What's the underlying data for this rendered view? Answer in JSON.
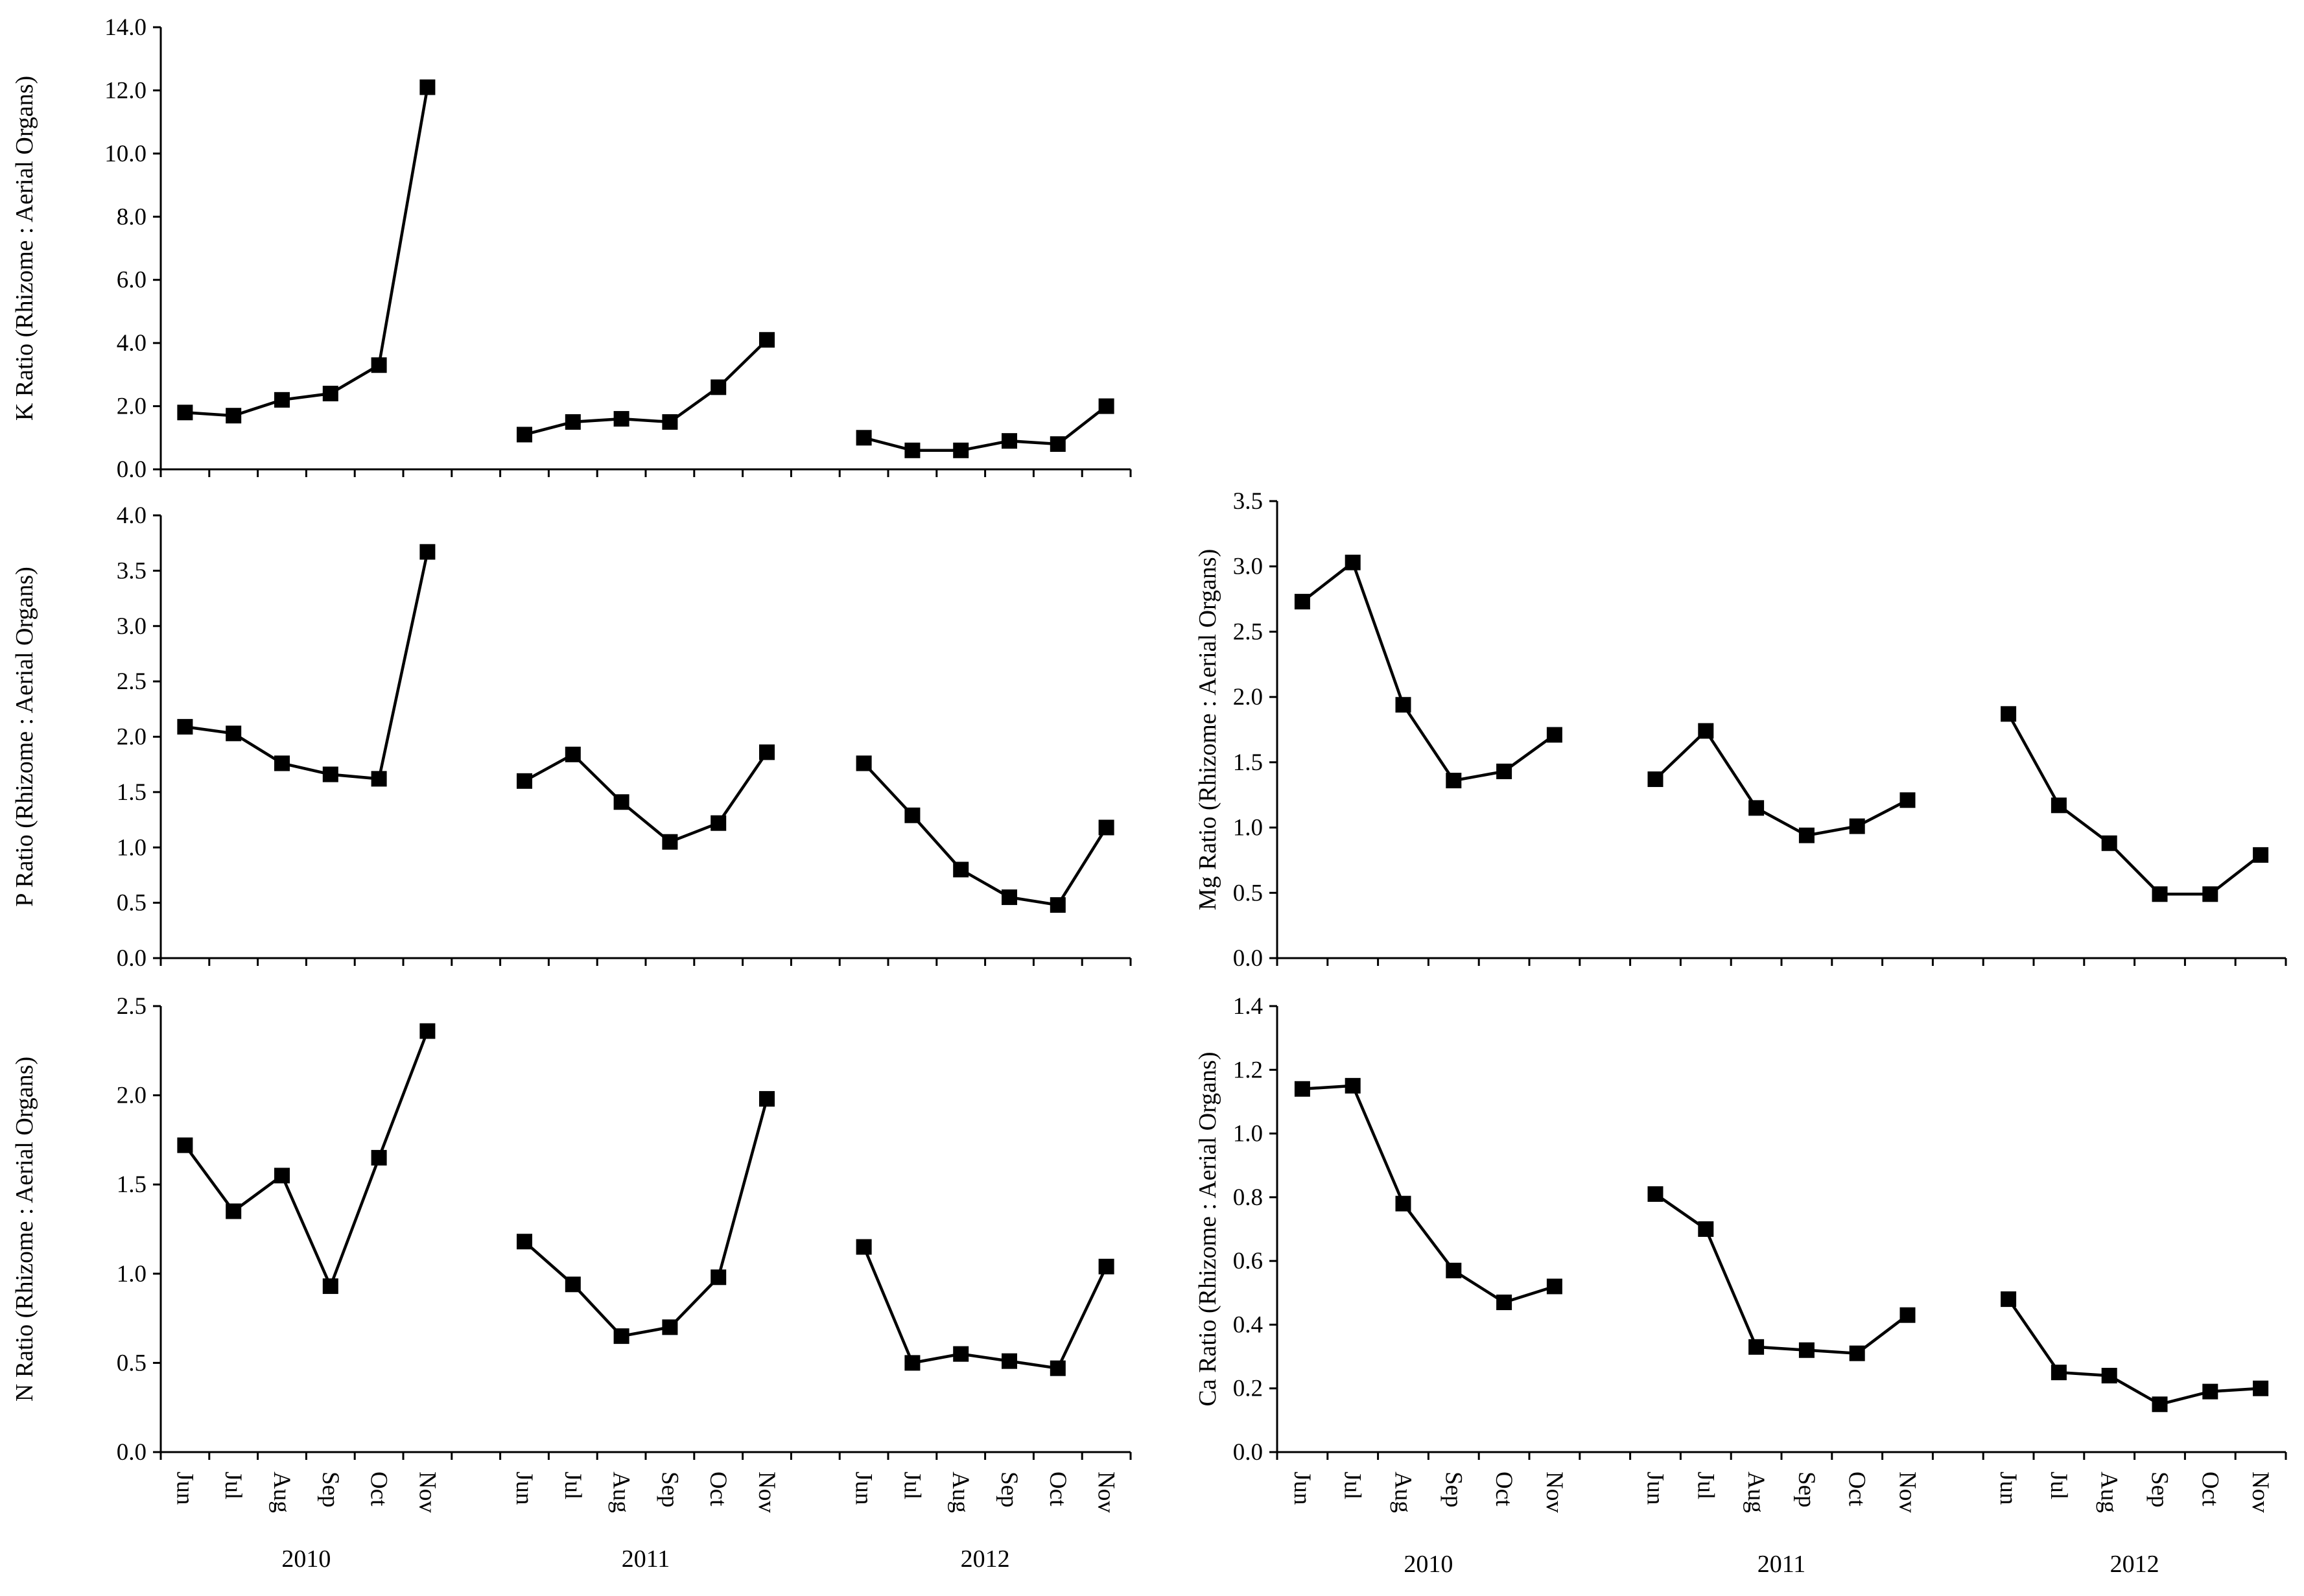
{
  "chart_data": [
    {
      "id": "k",
      "type": "line",
      "title": "",
      "ylabel": "K Ratio (Rhizome : Aerial Organs)",
      "ylim": [
        0,
        14
      ],
      "yticks": [
        "0.0",
        "2.0",
        "4.0",
        "6.0",
        "8.0",
        "10.0",
        "12.0",
        "14.0"
      ],
      "month_labels_shown": false,
      "years": [
        {
          "year": "2010",
          "months": [
            "Jun",
            "Jul",
            "Aug",
            "Sep",
            "Oct",
            "Nov"
          ],
          "values": [
            1.8,
            1.7,
            2.2,
            2.4,
            3.3,
            12.1
          ]
        },
        {
          "year": "2011",
          "months": [
            "Jun",
            "Jul",
            "Aug",
            "Sep",
            "Oct",
            "Nov"
          ],
          "values": [
            1.1,
            1.5,
            1.6,
            1.5,
            2.6,
            4.1
          ]
        },
        {
          "year": "2012",
          "months": [
            "Jun",
            "Jul",
            "Aug",
            "Sep",
            "Oct",
            "Nov"
          ],
          "values": [
            1.0,
            0.6,
            0.6,
            0.9,
            0.8,
            2.0
          ]
        }
      ]
    },
    {
      "id": "p",
      "type": "line",
      "title": "",
      "ylabel": "P Ratio (Rhizome : Aerial Organs)",
      "ylim": [
        0,
        4
      ],
      "yticks": [
        "0.0",
        "0.5",
        "1.0",
        "1.5",
        "2.0",
        "2.5",
        "3.0",
        "3.5",
        "4.0"
      ],
      "month_labels_shown": false,
      "years": [
        {
          "year": "2010",
          "months": [
            "Jun",
            "Jul",
            "Aug",
            "Sep",
            "Oct",
            "Nov"
          ],
          "values": [
            2.09,
            2.03,
            1.76,
            1.66,
            1.62,
            3.67
          ]
        },
        {
          "year": "2011",
          "months": [
            "Jun",
            "Jul",
            "Aug",
            "Sep",
            "Oct",
            "Nov"
          ],
          "values": [
            1.6,
            1.84,
            1.41,
            1.05,
            1.22,
            1.86
          ]
        },
        {
          "year": "2012",
          "months": [
            "Jun",
            "Jul",
            "Aug",
            "Sep",
            "Oct",
            "Nov"
          ],
          "values": [
            1.76,
            1.29,
            0.8,
            0.55,
            0.48,
            1.18
          ]
        }
      ]
    },
    {
      "id": "mg",
      "type": "line",
      "title": "",
      "ylabel": "Mg Ratio (Rhizome : Aerial Organs)",
      "ylim": [
        0,
        3.5
      ],
      "yticks": [
        "0.0",
        "0.5",
        "1.0",
        "1.5",
        "2.0",
        "2.5",
        "3.0",
        "3.5"
      ],
      "month_labels_shown": false,
      "years": [
        {
          "year": "2010",
          "months": [
            "Jun",
            "Jul",
            "Aug",
            "Sep",
            "Oct",
            "Nov"
          ],
          "values": [
            2.73,
            3.03,
            1.94,
            1.36,
            1.43,
            1.71
          ]
        },
        {
          "year": "2011",
          "months": [
            "Jun",
            "Jul",
            "Aug",
            "Sep",
            "Oct",
            "Nov"
          ],
          "values": [
            1.37,
            1.74,
            1.15,
            0.94,
            1.01,
            1.21
          ]
        },
        {
          "year": "2012",
          "months": [
            "Jun",
            "Jul",
            "Aug",
            "Sep",
            "Oct",
            "Nov"
          ],
          "values": [
            1.87,
            1.17,
            0.88,
            0.49,
            0.49,
            0.79
          ]
        }
      ]
    },
    {
      "id": "n",
      "type": "line",
      "title": "",
      "ylabel": "N Ratio (Rhizome : Aerial Organs)",
      "ylim": [
        0,
        2.5
      ],
      "yticks": [
        "0.0",
        "0.5",
        "1.0",
        "1.5",
        "2.0",
        "2.5"
      ],
      "month_labels_shown": true,
      "years": [
        {
          "year": "2010",
          "months": [
            "Jun",
            "Jul",
            "Aug",
            "Sep",
            "Oct",
            "Nov"
          ],
          "values": [
            1.72,
            1.35,
            1.55,
            0.93,
            1.65,
            2.36
          ]
        },
        {
          "year": "2011",
          "months": [
            "Jun",
            "Jul",
            "Aug",
            "Sep",
            "Oct",
            "Nov"
          ],
          "values": [
            1.18,
            0.94,
            0.65,
            0.7,
            0.98,
            1.98
          ]
        },
        {
          "year": "2012",
          "months": [
            "Jun",
            "Jul",
            "Aug",
            "Sep",
            "Oct",
            "Nov"
          ],
          "values": [
            1.15,
            0.5,
            0.55,
            0.51,
            0.47,
            1.04
          ]
        }
      ]
    },
    {
      "id": "ca",
      "type": "line",
      "title": "",
      "ylabel": "Ca Ratio (Rhizome : Aerial Organs)",
      "ylim": [
        0,
        1.4
      ],
      "yticks": [
        "0.0",
        "0.2",
        "0.4",
        "0.6",
        "0.8",
        "1.0",
        "1.2",
        "1.4"
      ],
      "month_labels_shown": true,
      "years": [
        {
          "year": "2010",
          "months": [
            "Jun",
            "Jul",
            "Aug",
            "Sep",
            "Oct",
            "Nov"
          ],
          "values": [
            1.14,
            1.15,
            0.78,
            0.57,
            0.47,
            0.52
          ]
        },
        {
          "year": "2011",
          "months": [
            "Jun",
            "Jul",
            "Aug",
            "Sep",
            "Oct",
            "Nov"
          ],
          "values": [
            0.81,
            0.7,
            0.33,
            0.32,
            0.31,
            0.43
          ]
        },
        {
          "year": "2012",
          "months": [
            "Jun",
            "Jul",
            "Aug",
            "Sep",
            "Oct",
            "Nov"
          ],
          "values": [
            0.48,
            0.25,
            0.24,
            0.15,
            0.19,
            0.2
          ]
        }
      ]
    }
  ]
}
